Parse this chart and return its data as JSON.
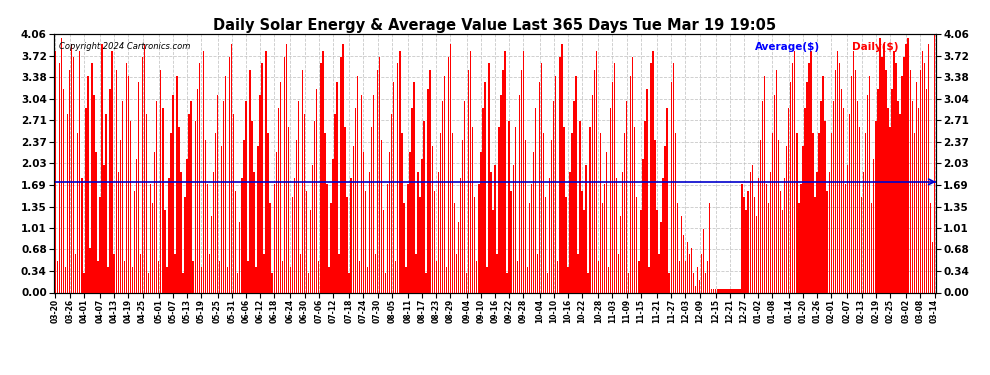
{
  "title": "Daily Solar Energy & Average Value Last 365 Days Tue Mar 19 19:05",
  "copyright": "Copyright 2024 Cartronics.com",
  "average_label": "Average($)",
  "daily_label": "Daily($)",
  "average_value": 1.738,
  "ylim": [
    0.0,
    4.06
  ],
  "yticks": [
    0.0,
    0.34,
    0.68,
    1.01,
    1.35,
    1.69,
    2.03,
    2.37,
    2.71,
    3.04,
    3.38,
    3.72,
    4.06
  ],
  "bar_color": "#ff0000",
  "avg_line_color": "#0000cc",
  "background_color": "#ffffff",
  "grid_color": "#bbbbbb",
  "title_color": "#000000",
  "x_labels": [
    "03-20",
    "03-26",
    "04-01",
    "04-07",
    "04-13",
    "04-19",
    "04-25",
    "05-01",
    "05-07",
    "05-13",
    "05-19",
    "05-25",
    "05-31",
    "06-06",
    "06-12",
    "06-18",
    "06-24",
    "06-30",
    "07-06",
    "07-12",
    "07-18",
    "07-24",
    "07-30",
    "08-05",
    "08-11",
    "08-17",
    "08-23",
    "08-29",
    "09-04",
    "09-10",
    "09-16",
    "09-22",
    "09-28",
    "10-04",
    "10-10",
    "10-16",
    "10-22",
    "10-28",
    "11-03",
    "11-09",
    "11-15",
    "11-21",
    "11-27",
    "12-03",
    "12-09",
    "12-15",
    "12-21",
    "12-27",
    "01-02",
    "01-08",
    "01-14",
    "01-20",
    "01-26",
    "02-01",
    "02-07",
    "02-13",
    "02-19",
    "02-25",
    "03-02",
    "03-08",
    "03-14"
  ],
  "values": [
    3.8,
    0.5,
    3.6,
    4.0,
    3.2,
    0.4,
    2.8,
    3.5,
    3.9,
    3.7,
    0.6,
    2.5,
    3.8,
    1.8,
    0.3,
    2.9,
    3.4,
    0.7,
    3.6,
    3.1,
    2.2,
    0.5,
    1.5,
    3.9,
    2.0,
    2.8,
    0.4,
    3.2,
    3.8,
    0.6,
    3.5,
    1.9,
    2.4,
    3.0,
    0.5,
    3.6,
    3.4,
    2.7,
    0.4,
    1.6,
    2.1,
    3.3,
    0.6,
    3.7,
    3.9,
    2.8,
    0.3,
    1.7,
    1.4,
    2.2,
    3.0,
    0.5,
    3.5,
    2.9,
    1.3,
    0.4,
    1.8,
    2.5,
    3.1,
    0.6,
    3.4,
    2.6,
    1.9,
    0.3,
    1.5,
    2.1,
    2.8,
    3.0,
    0.5,
    2.7,
    3.2,
    3.6,
    0.4,
    3.8,
    2.4,
    1.7,
    0.6,
    1.2,
    1.9,
    2.5,
    3.1,
    0.5,
    2.3,
    3.0,
    3.4,
    0.4,
    3.7,
    3.9,
    2.8,
    1.6,
    0.3,
    1.1,
    1.8,
    2.4,
    3.0,
    0.5,
    3.5,
    2.7,
    1.9,
    0.4,
    2.3,
    3.1,
    3.6,
    0.6,
    3.8,
    2.5,
    1.4,
    0.3,
    1.7,
    2.2,
    2.9,
    3.3,
    0.5,
    3.7,
    3.9,
    2.6,
    0.4,
    1.5,
    1.8,
    2.4,
    3.0,
    0.6,
    3.5,
    2.8,
    1.6,
    0.3,
    1.3,
    2.0,
    2.7,
    3.2,
    0.5,
    3.6,
    3.8,
    2.5,
    1.7,
    0.4,
    1.4,
    2.1,
    2.8,
    3.3,
    0.6,
    3.7,
    3.9,
    2.6,
    1.5,
    0.3,
    1.8,
    2.3,
    2.9,
    3.4,
    0.5,
    3.1,
    2.2,
    1.6,
    0.4,
    1.9,
    2.6,
    3.1,
    0.6,
    3.5,
    3.7,
    2.4,
    1.3,
    0.3,
    1.7,
    2.2,
    2.8,
    3.3,
    0.5,
    3.6,
    3.8,
    2.5,
    1.4,
    0.4,
    1.7,
    2.2,
    2.9,
    3.3,
    0.6,
    1.9,
    1.5,
    2.1,
    2.7,
    0.3,
    3.2,
    3.5,
    2.3,
    1.6,
    0.5,
    1.9,
    2.5,
    3.0,
    3.4,
    0.4,
    3.7,
    3.9,
    2.5,
    1.4,
    0.6,
    1.1,
    1.8,
    2.4,
    3.0,
    0.3,
    3.5,
    3.8,
    2.6,
    1.5,
    0.5,
    1.7,
    2.2,
    2.9,
    3.3,
    0.4,
    3.6,
    1.9,
    1.3,
    2.0,
    0.6,
    2.6,
    3.1,
    3.5,
    3.8,
    0.3,
    2.7,
    1.6,
    2.0,
    2.6,
    0.5,
    3.1,
    3.5,
    3.8,
    2.4,
    0.4,
    1.4,
    1.7,
    2.2,
    2.9,
    0.6,
    3.3,
    3.6,
    2.5,
    1.5,
    0.3,
    1.8,
    2.4,
    3.0,
    3.4,
    0.5,
    3.7,
    3.9,
    2.6,
    1.5,
    0.4,
    1.9,
    2.5,
    3.0,
    3.4,
    0.6,
    2.7,
    1.6,
    1.3,
    2.0,
    0.3,
    2.6,
    3.1,
    3.5,
    3.8,
    0.5,
    2.5,
    1.4,
    1.7,
    2.2,
    0.4,
    2.9,
    3.3,
    3.6,
    1.8,
    0.6,
    1.2,
    1.9,
    2.5,
    3.0,
    0.3,
    3.4,
    3.7,
    2.6,
    1.5,
    0.5,
    1.3,
    2.1,
    2.7,
    3.2,
    0.4,
    3.6,
    3.8,
    2.4,
    1.3,
    0.6,
    1.1,
    1.8,
    2.3,
    2.9,
    0.3,
    3.3,
    3.6,
    2.5,
    1.4,
    0.5,
    1.2,
    0.9,
    0.5,
    0.8,
    0.6,
    0.7,
    0.3,
    0.1,
    0.4,
    0.2,
    0.6,
    1.0,
    0.3,
    0.5,
    1.4,
    0.05,
    0.05,
    0.05,
    0.05,
    0.05,
    0.05,
    0.05,
    0.05,
    0.05,
    0.05,
    0.05,
    0.05,
    0.05,
    0.05,
    0.05,
    1.7,
    1.5,
    1.3,
    1.6,
    1.9,
    2.0,
    1.5,
    1.2,
    1.8,
    2.4,
    3.0,
    3.4,
    1.7,
    1.4,
    1.9,
    2.5,
    3.1,
    3.5,
    2.4,
    1.6,
    1.3,
    1.8,
    2.3,
    2.9,
    3.3,
    3.6,
    3.8,
    2.5,
    1.4,
    1.7,
    2.3,
    2.9,
    3.3,
    3.6,
    3.8,
    2.5,
    1.5,
    1.9,
    2.5,
    3.0,
    3.4,
    2.7,
    1.6,
    1.9,
    2.5,
    3.0,
    3.5,
    3.8,
    3.6,
    3.2,
    2.9,
    1.7,
    2.0,
    2.8,
    3.4,
    3.8,
    3.5,
    3.0,
    2.6,
    1.5,
    1.9,
    2.5,
    3.1,
    3.4,
    1.4,
    2.1,
    2.7,
    3.2,
    4.0,
    3.7,
    3.9,
    3.5,
    2.9,
    2.6,
    3.2,
    3.8,
    3.6,
    3.0,
    2.8,
    3.4,
    3.7,
    3.9,
    4.0,
    3.5,
    3.0,
    2.5,
    3.3,
    2.9,
    3.5,
    3.8,
    3.6,
    3.2,
    3.9,
    1.4,
    0.8,
    4.06
  ]
}
